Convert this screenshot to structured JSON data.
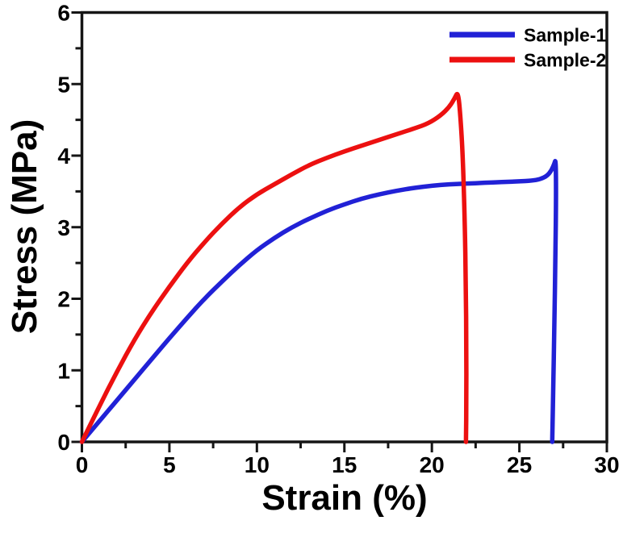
{
  "chart_data": {
    "type": "line",
    "title": "",
    "xlabel": "Strain (%)",
    "ylabel": "Stress (MPa)",
    "xlim": [
      0,
      30
    ],
    "ylim": [
      0,
      6
    ],
    "x_major_ticks": [
      0,
      5,
      10,
      15,
      20,
      25,
      30
    ],
    "x_minor_tick_step": 2.5,
    "y_major_ticks": [
      0,
      1,
      2,
      3,
      4,
      5,
      6
    ],
    "y_minor_tick_step": 0.5,
    "grid": false,
    "axis_color": "#151515",
    "legend": {
      "position": "top-right-inside",
      "border": false
    },
    "series": [
      {
        "name": "Sample-1",
        "color": "#2121d6",
        "points": [
          [
            0,
            0
          ],
          [
            1,
            0.29
          ],
          [
            2,
            0.58
          ],
          [
            3,
            0.87
          ],
          [
            4,
            1.16
          ],
          [
            5,
            1.45
          ],
          [
            6,
            1.73
          ],
          [
            7,
            2.0
          ],
          [
            8,
            2.24
          ],
          [
            9,
            2.47
          ],
          [
            10,
            2.68
          ],
          [
            11,
            2.85
          ],
          [
            12,
            3.0
          ],
          [
            13,
            3.12
          ],
          [
            14,
            3.23
          ],
          [
            15,
            3.32
          ],
          [
            16,
            3.4
          ],
          [
            17,
            3.46
          ],
          [
            18,
            3.51
          ],
          [
            19,
            3.55
          ],
          [
            20,
            3.58
          ],
          [
            21,
            3.6
          ],
          [
            22,
            3.61
          ],
          [
            23,
            3.62
          ],
          [
            24,
            3.63
          ],
          [
            25,
            3.64
          ],
          [
            25.7,
            3.65
          ],
          [
            26.2,
            3.67
          ],
          [
            26.6,
            3.72
          ],
          [
            26.85,
            3.8
          ],
          [
            27.0,
            3.89
          ],
          [
            27.08,
            3.95
          ],
          [
            27.1,
            3.45
          ],
          [
            27.06,
            2.6
          ],
          [
            27.0,
            1.6
          ],
          [
            26.93,
            0.7
          ],
          [
            26.88,
            0
          ]
        ],
        "ultimate_strength_mpa": 3.95,
        "strain_at_break_pct": 26.9
      },
      {
        "name": "Sample-2",
        "color": "#ec1010",
        "points": [
          [
            0,
            0
          ],
          [
            1,
            0.5
          ],
          [
            2,
            0.98
          ],
          [
            3,
            1.43
          ],
          [
            4,
            1.82
          ],
          [
            5,
            2.17
          ],
          [
            6,
            2.5
          ],
          [
            7,
            2.79
          ],
          [
            8,
            3.05
          ],
          [
            9,
            3.28
          ],
          [
            10,
            3.46
          ],
          [
            11,
            3.6
          ],
          [
            12,
            3.74
          ],
          [
            13,
            3.87
          ],
          [
            14,
            3.97
          ],
          [
            15,
            4.06
          ],
          [
            16,
            4.14
          ],
          [
            17,
            4.22
          ],
          [
            18,
            4.3
          ],
          [
            19,
            4.38
          ],
          [
            19.8,
            4.45
          ],
          [
            20.5,
            4.56
          ],
          [
            21,
            4.68
          ],
          [
            21.3,
            4.8
          ],
          [
            21.5,
            4.9
          ],
          [
            21.65,
            4.5
          ],
          [
            21.78,
            3.9
          ],
          [
            21.88,
            3.1
          ],
          [
            21.94,
            2.2
          ],
          [
            21.97,
            1.3
          ],
          [
            21.97,
            0.6
          ],
          [
            21.95,
            0
          ]
        ],
        "ultimate_strength_mpa": 4.9,
        "strain_at_break_pct": 21.95
      }
    ]
  }
}
